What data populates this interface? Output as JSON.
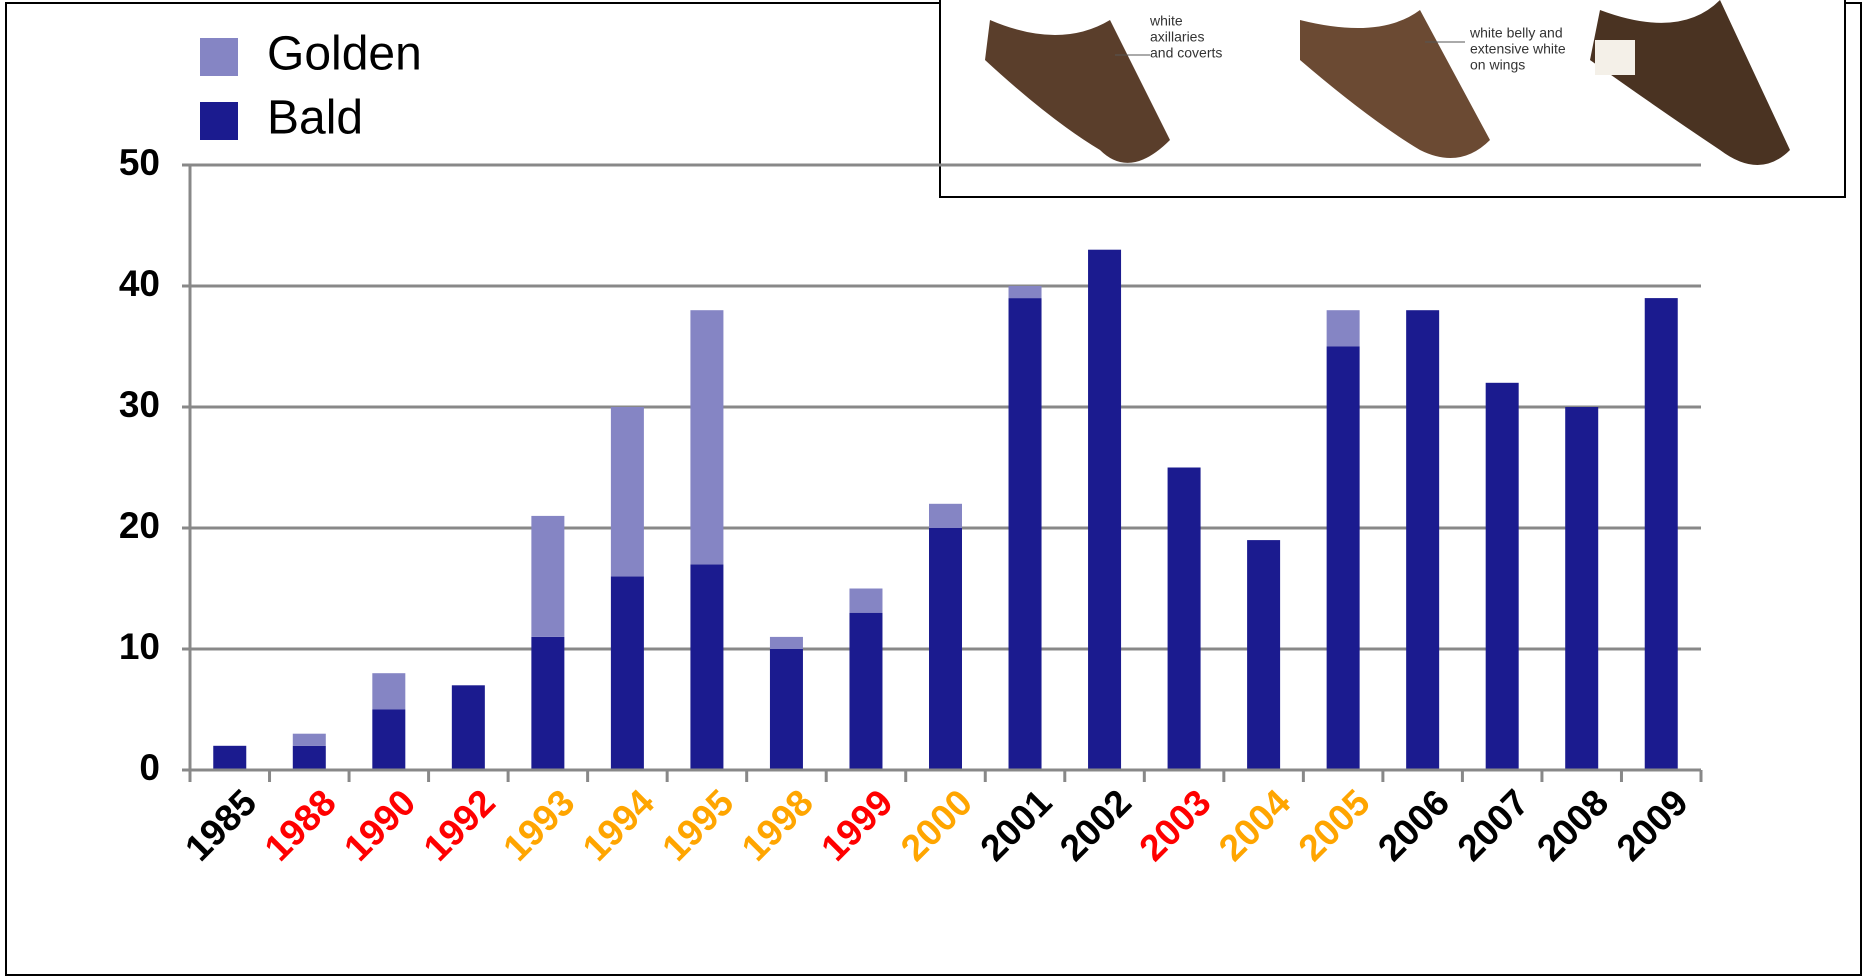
{
  "chart_data": {
    "type": "stacked-bar",
    "categories": [
      "1985",
      "1988",
      "1990",
      "1992",
      "1993",
      "1994",
      "1995",
      "1998",
      "1999",
      "2000",
      "2001",
      "2002",
      "2003",
      "2004",
      "2005",
      "2006",
      "2007",
      "2008",
      "2009"
    ],
    "category_colors": [
      "#000000",
      "#ff0000",
      "#ff0000",
      "#ff0000",
      "#ffa500",
      "#ffa500",
      "#ffa500",
      "#ffa500",
      "#ff0000",
      "#ffa500",
      "#000000",
      "#000000",
      "#ff0000",
      "#ffa500",
      "#ffa500",
      "#000000",
      "#000000",
      "#000000",
      "#000000"
    ],
    "series": [
      {
        "name": "Golden",
        "color": "#8585c4",
        "values": [
          0,
          1,
          3,
          0,
          10,
          14,
          21,
          1,
          2,
          2,
          1,
          0,
          0,
          0,
          3,
          0,
          0,
          0,
          0
        ]
      },
      {
        "name": "Bald",
        "color": "#1b1b8f",
        "values": [
          2,
          2,
          5,
          7,
          11,
          16,
          17,
          10,
          13,
          20,
          39,
          43,
          25,
          19,
          35,
          38,
          32,
          30,
          39
        ]
      }
    ],
    "ylim": [
      0,
      50
    ],
    "yticks": [
      0,
      10,
      20,
      30,
      40,
      50
    ],
    "grid": true,
    "annotations": [
      {
        "lines": [
          "white",
          "axillaries",
          "and coverts"
        ]
      },
      {
        "lines": [
          "white belly and",
          "extensive white",
          "on wings"
        ]
      }
    ]
  }
}
